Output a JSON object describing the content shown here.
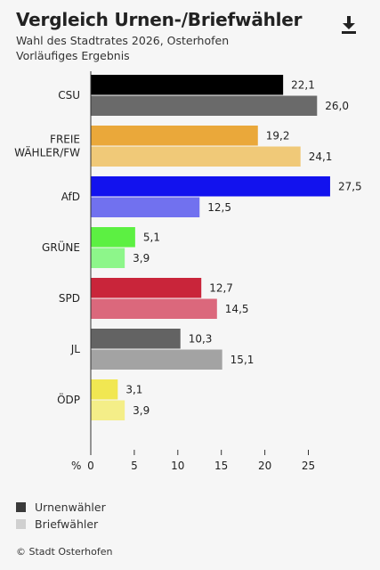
{
  "header": {
    "title": "Vergleich Urnen-/Briefwähler",
    "subtitle_line1": "Wahl des Stadtrates 2026, Osterhofen",
    "subtitle_line2": "Vorläufiges Ergebnis",
    "download_icon": "download-icon"
  },
  "chart_data": {
    "type": "bar",
    "orientation": "horizontal",
    "categories": [
      [
        "CSU"
      ],
      [
        "FREIE",
        "WÄHLER/FW"
      ],
      [
        "AfD"
      ],
      [
        "GRÜNE"
      ],
      [
        "SPD"
      ],
      [
        "JL"
      ],
      [
        "ÖDP"
      ]
    ],
    "series": [
      {
        "name": "Urnenwähler",
        "values": [
          22.1,
          19.2,
          27.5,
          5.1,
          12.7,
          10.3,
          3.1
        ],
        "labels": [
          "22,1",
          "19,2",
          "27,5",
          "5,1",
          "12,7",
          "10,3",
          "3,1"
        ],
        "colors": [
          "#000000",
          "#eaa83a",
          "#1212ee",
          "#5cf042",
          "#c9253a",
          "#636363",
          "#f1e752"
        ]
      },
      {
        "name": "Briefwähler",
        "values": [
          26.0,
          24.1,
          12.5,
          3.9,
          14.5,
          15.1,
          3.9
        ],
        "labels": [
          "26,0",
          "24,1",
          "12,5",
          "3,9",
          "14,5",
          "15,1",
          "3,9"
        ],
        "colors": [
          "#6a6a6a",
          "#f0c978",
          "#7171ef",
          "#8df68a",
          "#db687c",
          "#a3a3a3",
          "#f4ee88"
        ]
      }
    ],
    "xunit": "%",
    "xlim": [
      0,
      28
    ],
    "xticks": [
      0,
      5,
      10,
      15,
      20,
      25
    ],
    "legend_position": "bottom-left",
    "legend_colors": [
      "#3a3a3a",
      "#d0d0d0"
    ]
  },
  "footer": {
    "source": "© Stadt Osterhofen"
  }
}
